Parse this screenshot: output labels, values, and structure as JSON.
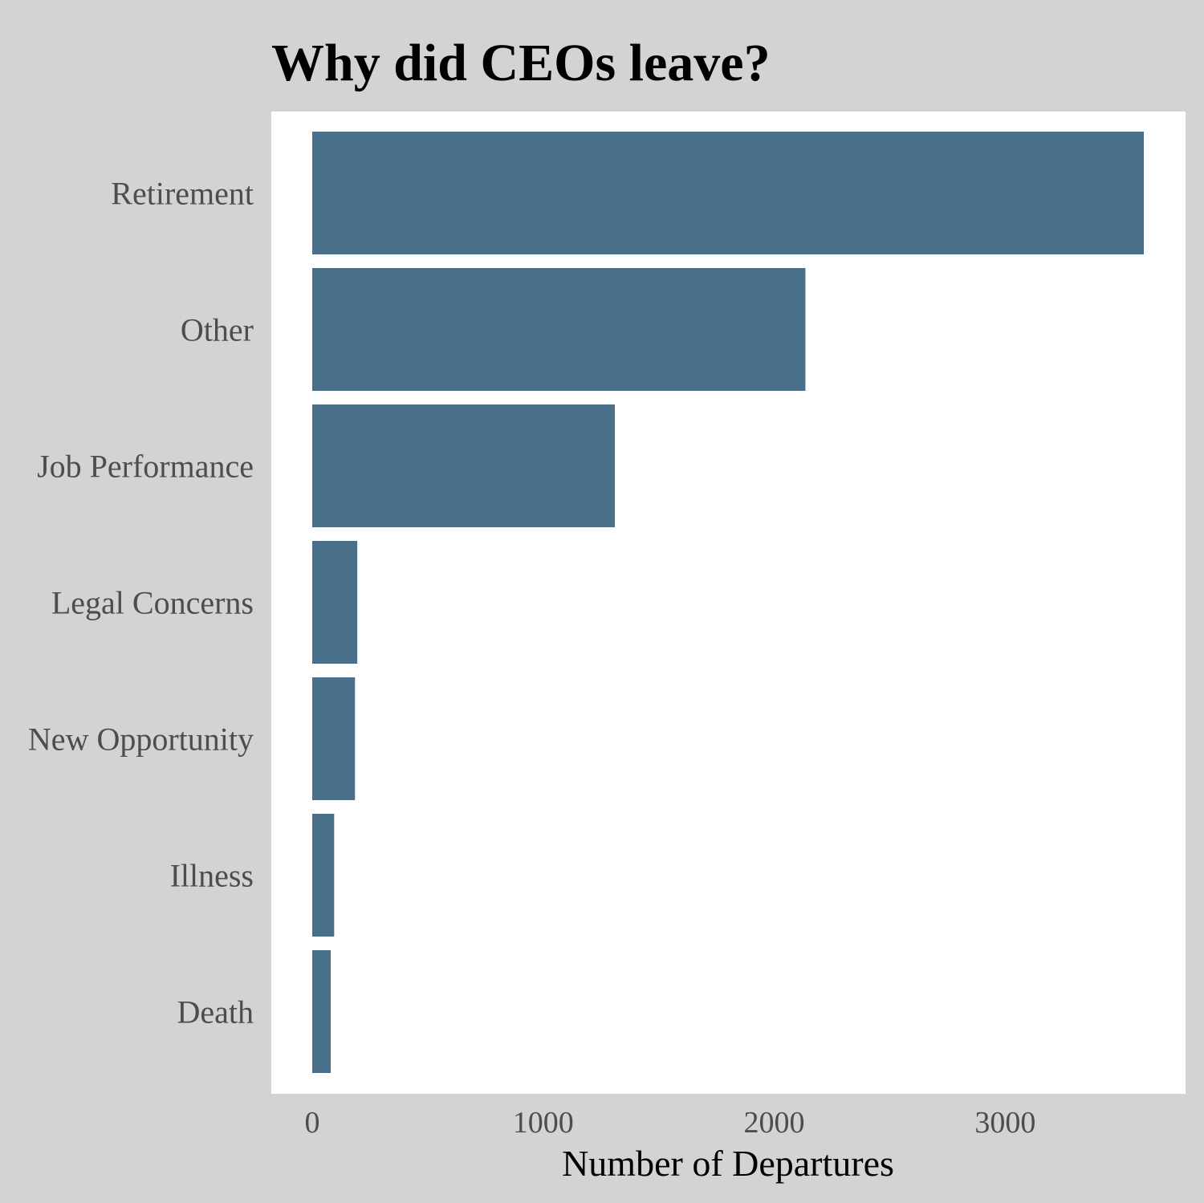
{
  "colors": {
    "background": "#d3d3d3",
    "panel": "#ffffff",
    "bar": "#4a6f8a",
    "label_text": "#4d4d4d",
    "title_text": "#000000"
  },
  "chart_data": {
    "type": "bar",
    "orientation": "horizontal",
    "title": "Why did CEOs leave?",
    "xlabel": "Number of Departures",
    "ylabel": "",
    "categories": [
      "Retirement",
      "Other",
      "Job Performance",
      "Legal Concerns",
      "New Opportunity",
      "Illness",
      "Death"
    ],
    "values": [
      3600,
      2135,
      1310,
      195,
      185,
      95,
      80
    ],
    "xlim": [
      0,
      3600
    ],
    "xticks": [
      0,
      1000,
      2000,
      3000
    ],
    "xtick_labels": [
      "0",
      "1000",
      "2000",
      "3000"
    ],
    "grid": false,
    "legend": "none"
  }
}
